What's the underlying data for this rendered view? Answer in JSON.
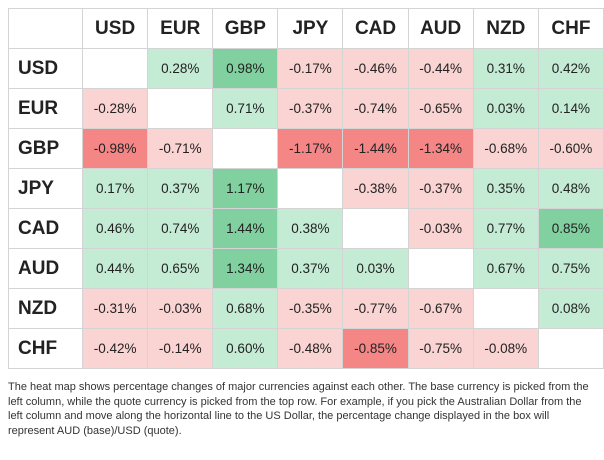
{
  "table": {
    "columns": [
      "USD",
      "EUR",
      "GBP",
      "JPY",
      "CAD",
      "AUD",
      "NZD",
      "CHF"
    ],
    "palette": {
      "w": "#ffffff",
      "g": "#c4ebd3",
      "G": "#80d19f",
      "r": "#fad3d3",
      "R": "#f58686"
    },
    "rows": [
      {
        "label": "USD",
        "shades": "wgGrrrgg",
        "cells": [
          null,
          "0.28%",
          "0.98%",
          "-0.17%",
          "-0.46%",
          "-0.44%",
          "0.31%",
          "0.42%"
        ]
      },
      {
        "label": "EUR",
        "shades": "rwgrrrgg",
        "cells": [
          "-0.28%",
          null,
          "0.71%",
          "-0.37%",
          "-0.74%",
          "-0.65%",
          "0.03%",
          "0.14%"
        ]
      },
      {
        "label": "GBP",
        "shades": "RrwRRRrr",
        "cells": [
          "-0.98%",
          "-0.71%",
          null,
          "-1.17%",
          "-1.44%",
          "-1.34%",
          "-0.68%",
          "-0.60%"
        ]
      },
      {
        "label": "JPY",
        "shades": "ggGwrrgg",
        "cells": [
          "0.17%",
          "0.37%",
          "1.17%",
          null,
          "-0.38%",
          "-0.37%",
          "0.35%",
          "0.48%"
        ]
      },
      {
        "label": "CAD",
        "shades": "ggGgwrgG",
        "cells": [
          "0.46%",
          "0.74%",
          "1.44%",
          "0.38%",
          null,
          "-0.03%",
          "0.77%",
          "0.85%"
        ]
      },
      {
        "label": "AUD",
        "shades": "ggGggwgg",
        "cells": [
          "0.44%",
          "0.65%",
          "1.34%",
          "0.37%",
          "0.03%",
          null,
          "0.67%",
          "0.75%"
        ]
      },
      {
        "label": "NZD",
        "shades": "rrgrrrwg",
        "cells": [
          "-0.31%",
          "-0.03%",
          "0.68%",
          "-0.35%",
          "-0.77%",
          "-0.67%",
          null,
          "0.08%"
        ]
      },
      {
        "label": "CHF",
        "shades": "rrgrRrrw",
        "cells": [
          "-0.42%",
          "-0.14%",
          "0.60%",
          "-0.48%",
          "-0.85%",
          "-0.75%",
          "-0.08%",
          null
        ]
      }
    ]
  },
  "note": "The heat map shows percentage changes of major currencies against each other. The base currency is picked from the left column, while the quote currency is picked from the top row. For example, if you pick the Australian Dollar from the left column and move along the horizontal line to the US Dollar, the percentage change displayed in the box will represent AUD (base)/USD (quote)."
}
